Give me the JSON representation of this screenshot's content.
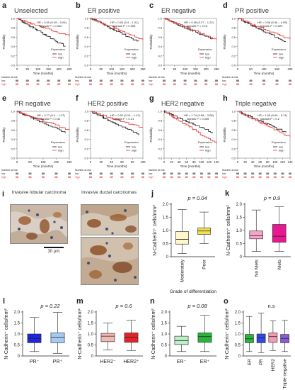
{
  "colors": {
    "high": "#e8322f",
    "low": "#1a1a1a",
    "yellow": "#f2df52",
    "pink": "#f7a3c9",
    "magenta": "#e8188f",
    "blue_dark": "#1f28e0",
    "blue_light": "#a6caf2",
    "red_dark": "#e0242b",
    "red_light": "#f3b7b4",
    "green_light": "#bdf0c6",
    "green_dark": "#29b43c",
    "pr_blue": "#3346e6",
    "her2_pink": "#f59ab4",
    "tn_purple": "#8a5bd6"
  },
  "km_common": {
    "ylabel": "Probability",
    "xlabel": "Time (months)",
    "legend_title": "Expression",
    "legend_low": "low",
    "legend_high": "high",
    "risk_title": "Number at risk",
    "risk_low": "low",
    "risk_high": "high"
  },
  "km_panels": [
    {
      "label": "a",
      "title": "Unselected",
      "hr": "HR = 0.65 (0.45 – 0.94)",
      "logrank": "logrank P = 0.022",
      "xticks": [
        "0",
        "50",
        "100",
        "150",
        "200",
        "250"
      ],
      "xmax": 250
    },
    {
      "label": "b",
      "title": "ER positive",
      "hr": "HR = 0.63 (0.4 – 1.01)",
      "logrank": "logrank P = 0.053",
      "xticks": [
        "0",
        "50",
        "100",
        "150",
        "200",
        "250"
      ],
      "xmax": 250
    },
    {
      "label": "c",
      "title": "ER negative",
      "hr": "HR = 0.58 (0.27 – 1.22)",
      "logrank": "logrank P = 0.15",
      "xticks": [
        "0",
        "50",
        "100",
        "150",
        "200",
        "250"
      ],
      "xmax": 250
    },
    {
      "label": "d",
      "title": "PR positive",
      "hr": "HR = 0.58 (0.36 – 0.95)",
      "logrank": "logrank P = 0.029",
      "xticks": [
        "0",
        "50",
        "100",
        "150",
        "200"
      ],
      "xmax": 200
    },
    {
      "label": "e",
      "title": "PR negative",
      "hr": "HR = 0.77 (0.4 – 1.47)",
      "logrank": "logrank P = 0.42",
      "xticks": [
        "0",
        "50",
        "100",
        "150",
        "200"
      ],
      "xmax": 200
    },
    {
      "label": "f",
      "title": "HER2 positive",
      "hr": "HR = 0.52 (0.19 – 1.47)",
      "logrank": "logrank P = 0.21",
      "xticks": [
        "0",
        "20",
        "40",
        "60",
        "80",
        "100"
      ],
      "xmax": 100
    },
    {
      "label": "g",
      "title": "HER2 negative",
      "hr": "HR = 1.74 (0.98 – 3.08)",
      "logrank": "logrank P = 0.055",
      "xticks": [
        "0",
        "20",
        "40",
        "60",
        "80",
        "100",
        "120",
        "140"
      ],
      "xmax": 140
    },
    {
      "label": "h",
      "title": "Triple negative",
      "hr": "HR = 1.99 (0.69 – 5.74)",
      "logrank": "logrank P = 0.2",
      "xticks": [
        "0",
        "20",
        "40",
        "60",
        "80",
        "100",
        "120",
        "140"
      ],
      "xmax": 140
    }
  ],
  "histology": {
    "label": "i",
    "lobular": "Invasive lobular carcinoma",
    "ductal": "Invasive ductal carcinomas",
    "scale": "30 μm"
  },
  "chart_data": [
    {
      "label": "j",
      "type": "box",
      "ylabel": "N-Cadherin⁺ cells/mm²",
      "xlabel": "Grade of differentiation",
      "ylim": [
        0,
        2
      ],
      "yticks": [
        "0",
        "0.5",
        "1.0",
        "1.5",
        "2.0"
      ],
      "pvalue": "p = 0.04",
      "groups": [
        {
          "name": "Moderately",
          "q": [
            0.12,
            0.48,
            0.66,
            0.96,
            1.8
          ],
          "color": "#fff6c9"
        },
        {
          "name": "Poor",
          "q": [
            0.5,
            0.85,
            0.98,
            1.1,
            1.7
          ],
          "color": "#f2df52"
        }
      ]
    },
    {
      "label": "k",
      "type": "box",
      "ylabel": "N-Cadherin⁺ cells/mm²",
      "xlabel": "",
      "ylim": [
        0,
        2
      ],
      "yticks": [
        "0",
        "0.5",
        "1.0",
        "1.5",
        "2.0"
      ],
      "pvalue": "p = 0.9",
      "groups": [
        {
          "name": "No Mets",
          "q": [
            0.2,
            0.68,
            0.8,
            0.98,
            1.78
          ],
          "color": "#f7a3c9"
        },
        {
          "name": "Mets",
          "q": [
            0.2,
            0.55,
            0.78,
            1.23,
            1.9
          ],
          "color": "#e8188f"
        }
      ]
    },
    {
      "label": "l",
      "type": "box",
      "ylabel": "N-Cadherin⁺ cells/mm²",
      "xlabel": "",
      "ylim": [
        0,
        2
      ],
      "yticks": [
        "0",
        "0.5",
        "1.0",
        "1.5",
        "2.0"
      ],
      "pvalue": "p = 0.22",
      "groups": [
        {
          "name": "PR⁻",
          "q": [
            0.2,
            0.6,
            0.8,
            1.0,
            1.75
          ],
          "color": "#1f28e0"
        },
        {
          "name": "PR⁺",
          "q": [
            0.12,
            0.6,
            0.85,
            1.05,
            1.98
          ],
          "color": "#a6caf2"
        }
      ]
    },
    {
      "label": "m",
      "type": "box",
      "ylabel": "N-Cadherin⁺ cells/mm²",
      "xlabel": "",
      "ylim": [
        0,
        2
      ],
      "yticks": [
        "0",
        "0.5",
        "1.0",
        "1.5",
        "2.0"
      ],
      "pvalue": "p = 0.6",
      "groups": [
        {
          "name": "HER2⁻",
          "q": [
            0.28,
            0.65,
            0.9,
            1.03,
            1.5
          ],
          "color": "#f3b7b4"
        },
        {
          "name": "HER2⁺",
          "q": [
            0.25,
            0.62,
            0.85,
            1.05,
            1.62
          ],
          "color": "#e0242b"
        }
      ]
    },
    {
      "label": "n",
      "type": "box",
      "ylabel": "N-Cadherin⁺ cells/mm²",
      "xlabel": "",
      "ylim": [
        0,
        2
      ],
      "yticks": [
        "0",
        "0.5",
        "1.0",
        "1.5",
        "2.0"
      ],
      "pvalue": "p = 0.08",
      "groups": [
        {
          "name": "ER⁻",
          "q": [
            0.2,
            0.52,
            0.7,
            0.9,
            1.35
          ],
          "color": "#bdf0c6"
        },
        {
          "name": "ER⁺",
          "q": [
            0.2,
            0.62,
            0.88,
            1.05,
            1.85
          ],
          "color": "#29b43c"
        }
      ]
    },
    {
      "label": "o",
      "type": "box",
      "ylabel": "N-Cadherin⁺ cells/mm²",
      "xlabel": "",
      "ylim": [
        0,
        2
      ],
      "yticks": [
        "0",
        "0.5",
        "1.0",
        "1.5",
        "2.0"
      ],
      "pvalue": "n.s",
      "groups": [
        {
          "name": "ER",
          "q": [
            0.2,
            0.6,
            0.78,
            0.98,
            1.8
          ],
          "color": "#29b43c"
        },
        {
          "name": "PR",
          "q": [
            0.15,
            0.6,
            0.82,
            1.0,
            1.95
          ],
          "color": "#3346e6"
        },
        {
          "name": "HER2",
          "q": [
            0.25,
            0.62,
            0.88,
            1.05,
            1.6
          ],
          "color": "#f59ab4"
        },
        {
          "name": "Triple negative",
          "q": [
            0.2,
            0.6,
            0.8,
            0.98,
            1.62
          ],
          "color": "#8a5bd6"
        }
      ]
    }
  ]
}
